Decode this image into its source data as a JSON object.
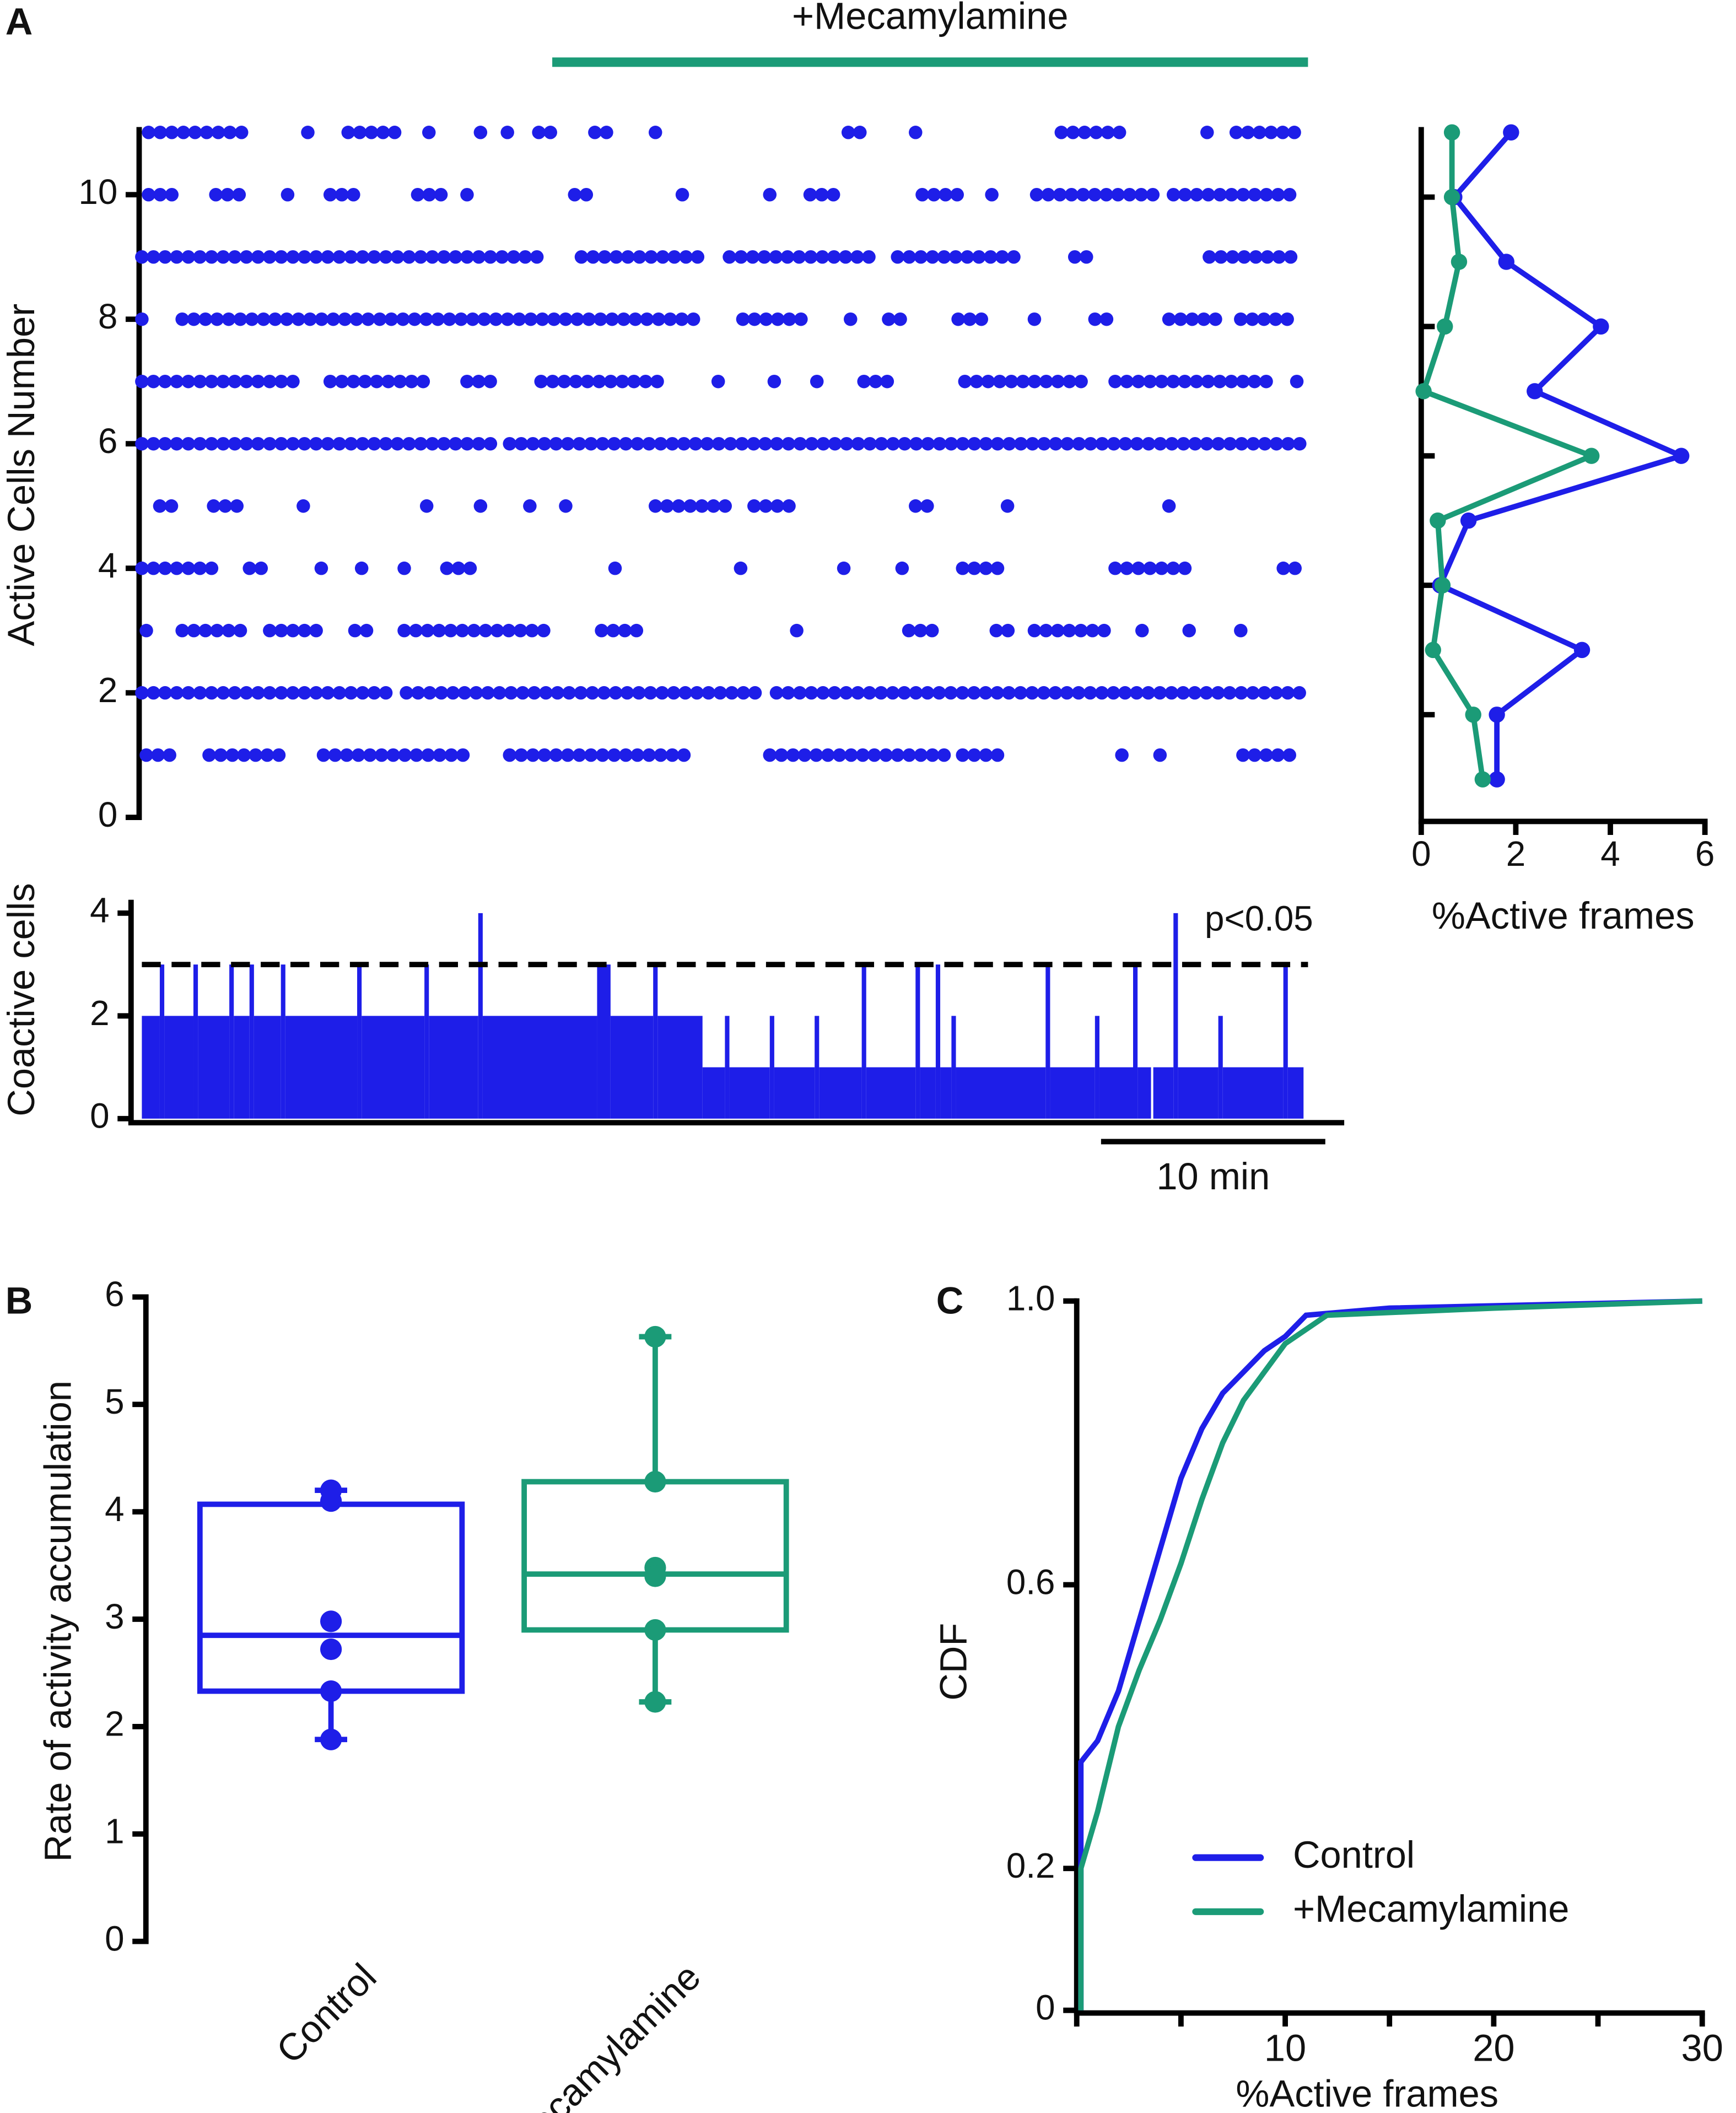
{
  "chart_data": [
    {
      "type": "raster",
      "panel": "A",
      "ylabel": "Active Cells Number",
      "color": "#1e1ee8",
      "treatment_label": "+Mecamylamine",
      "treatment": [
        18.3,
        52
      ],
      "treatment_color": "#1b9b77",
      "xlim": [
        0,
        52
      ],
      "ylim": [
        0,
        11
      ],
      "yticks": [
        0,
        2,
        4,
        6,
        8,
        10
      ],
      "rows": [
        {
          "y": 1,
          "intervals": [
            [
              0.2,
              1.4
            ],
            [
              3,
              6.6
            ],
            [
              8.1,
              14.5
            ],
            [
              16.4,
              24.4
            ],
            [
              28,
              36.1
            ],
            [
              36.6,
              38.6
            ],
            [
              43.7,
              44
            ],
            [
              45.4,
              45.4
            ],
            [
              49.1,
              51.2
            ]
          ]
        },
        {
          "y": 2,
          "intervals": [
            [
              0,
              11.1
            ],
            [
              11.8,
              27.4
            ],
            [
              28.3,
              51.8
            ]
          ]
        },
        {
          "y": 3,
          "intervals": [
            [
              0.2,
              0.2
            ],
            [
              1.8,
              4.5
            ],
            [
              5.7,
              7.8
            ],
            [
              9.5,
              10.1
            ],
            [
              11.7,
              18.3
            ],
            [
              20.5,
              22.5
            ],
            [
              29.2,
              29.2
            ],
            [
              34.2,
              35.5
            ],
            [
              38.1,
              38.9
            ],
            [
              39.8,
              43.4
            ],
            [
              44.6,
              44.6
            ],
            [
              46.7,
              46.7
            ],
            [
              49,
              49
            ]
          ]
        },
        {
          "y": 4,
          "intervals": [
            [
              0,
              3.6
            ],
            [
              4.8,
              5.4
            ],
            [
              8,
              8
            ],
            [
              9.8,
              9.8
            ],
            [
              11.7,
              11.7
            ],
            [
              13.6,
              14.8
            ],
            [
              21.1,
              21.5
            ],
            [
              26.7,
              26.7
            ],
            [
              31.3,
              31.3
            ],
            [
              33.9,
              33.9
            ],
            [
              36.6,
              38.3
            ],
            [
              43.4,
              47
            ],
            [
              50.9,
              51.5
            ]
          ]
        },
        {
          "y": 5,
          "intervals": [
            [
              0.8,
              1.5
            ],
            [
              3.2,
              4.5
            ],
            [
              7.2,
              7.2
            ],
            [
              12.7,
              12.7
            ],
            [
              15.1,
              15.4
            ],
            [
              17.3,
              17.3
            ],
            [
              18.9,
              18.9
            ],
            [
              22.9,
              26.2
            ],
            [
              27.3,
              29.3
            ],
            [
              34.5,
              35.5
            ],
            [
              38.6,
              38.6
            ],
            [
              45.8,
              45.8
            ]
          ]
        },
        {
          "y": 6,
          "intervals": [
            [
              0,
              15.7
            ],
            [
              16.4,
              51.8
            ]
          ]
        },
        {
          "y": 7,
          "intervals": [
            [
              0,
              7.2
            ],
            [
              8.4,
              13
            ],
            [
              14.5,
              16
            ],
            [
              17.8,
              23.2
            ],
            [
              25.7,
              25.7
            ],
            [
              28.2,
              28.2
            ],
            [
              30.1,
              30.1
            ],
            [
              32.2,
              33.4
            ],
            [
              36.7,
              42.2
            ],
            [
              43.4,
              50.3
            ],
            [
              51.5,
              51.5
            ]
          ]
        },
        {
          "y": 8,
          "intervals": [
            [
              0,
              0.4
            ],
            [
              1.8,
              25
            ],
            [
              26.8,
              29.8
            ],
            [
              31.6,
              31.6
            ],
            [
              33.3,
              34
            ],
            [
              36.4,
              37.9
            ],
            [
              39.8,
              39.8
            ],
            [
              42.5,
              43.3
            ],
            [
              45.8,
              47.9
            ],
            [
              49,
              51.5
            ]
          ]
        },
        {
          "y": 9,
          "intervals": [
            [
              0,
              17.8
            ],
            [
              19.6,
              25
            ],
            [
              26.2,
              32.8
            ],
            [
              33.7,
              39.2
            ],
            [
              41.6,
              42.4
            ],
            [
              47.6,
              51.5
            ]
          ]
        },
        {
          "y": 10,
          "intervals": [
            [
              0.3,
              1.4
            ],
            [
              3.3,
              4.6
            ],
            [
              6.5,
              6.5
            ],
            [
              8.4,
              9.5
            ],
            [
              12.3,
              13.4
            ],
            [
              14.5,
              14.8
            ],
            [
              19.3,
              19.9
            ],
            [
              24.1,
              24.5
            ],
            [
              28,
              28
            ],
            [
              29.8,
              30.9
            ],
            [
              34.8,
              36.4
            ],
            [
              37.9,
              37.9
            ],
            [
              39.9,
              45.2
            ],
            [
              46,
              51.4
            ]
          ]
        },
        {
          "y": 11,
          "intervals": [
            [
              0.3,
              4.8
            ],
            [
              7.4,
              7.4
            ],
            [
              9.2,
              11.7
            ],
            [
              12.8,
              12.8
            ],
            [
              15.1,
              15.1
            ],
            [
              16.3,
              16.3
            ],
            [
              17.7,
              18.3
            ],
            [
              20.2,
              21.1
            ],
            [
              22.9,
              23.2
            ],
            [
              31.5,
              32.3
            ],
            [
              34.5,
              34.5
            ],
            [
              41,
              44
            ],
            [
              47.5,
              47.8
            ],
            [
              48.8,
              51.8
            ]
          ]
        }
      ]
    },
    {
      "type": "profile",
      "xlabel": "%Active frames",
      "xlim": [
        0,
        6
      ],
      "xticks": [
        0,
        2,
        4,
        6
      ],
      "ylim": [
        0.35,
        11
      ],
      "yticks": [
        2,
        4,
        6,
        8,
        10
      ],
      "ytick_labels": false,
      "y": [
        1,
        2,
        3,
        4,
        5,
        6,
        7,
        8,
        9,
        10,
        11
      ],
      "series": [
        {
          "color": "#1e1ee8",
          "values": [
            1.6,
            1.6,
            3.4,
            0.4,
            1.0,
            5.5,
            2.4,
            3.8,
            1.8,
            0.7,
            1.9
          ]
        },
        {
          "color": "#1b9b77",
          "values": [
            1.3,
            1.1,
            0.25,
            0.45,
            0.35,
            3.6,
            0.05,
            0.5,
            0.8,
            0.65,
            0.65
          ]
        }
      ]
    },
    {
      "type": "step",
      "ylabel": "Coactive cells",
      "color": "#1e1ee8",
      "xlim": [
        0,
        52
      ],
      "ylim": [
        0,
        4.26
      ],
      "yticks": [
        0,
        2,
        4
      ],
      "threshold": 3,
      "threshold_label": "p<0.05",
      "scalebar": 10,
      "scalebar_label": "10 min",
      "x": [
        0,
        0.8,
        1,
        2.3,
        2.5,
        3.9,
        4.1,
        4.8,
        5,
        6.2,
        6.4,
        9.6,
        9.8,
        12.6,
        12.8,
        15,
        15.2,
        20.3,
        20.9,
        22.8,
        23,
        25,
        26,
        26.2,
        28,
        28.2,
        30,
        30.2,
        32.1,
        32.3,
        34.5,
        34.7,
        35.4,
        35.6,
        36.1,
        36.3,
        40.3,
        40.5,
        42.5,
        42.7,
        44.2,
        44.4,
        45,
        45.1,
        46,
        46.2,
        48,
        48.2,
        50.9,
        51.1,
        51.8
      ],
      "values": [
        2,
        3,
        2,
        3,
        2,
        3,
        2,
        3,
        2,
        3,
        2,
        3,
        2,
        3,
        2,
        4,
        2,
        3,
        2,
        3,
        2,
        1,
        2,
        1,
        2,
        1,
        2,
        1,
        3,
        1,
        3,
        1,
        3,
        1,
        2,
        1,
        3,
        1,
        2,
        1,
        3,
        1,
        0,
        1,
        4,
        1,
        2,
        1,
        3,
        1,
        0
      ]
    },
    {
      "type": "box",
      "panel": "B",
      "ylabel": "Rate of activity accumulation",
      "ylim": [
        0,
        6
      ],
      "yticks": [
        0,
        1,
        2,
        3,
        4,
        5,
        6
      ],
      "categories": [
        "Control",
        "+Mecamylamine"
      ],
      "boxes": [
        {
          "color": "#1e1ee8",
          "min": 1.88,
          "q1": 2.33,
          "median": 2.85,
          "q3": 4.07,
          "max": 4.2,
          "points": [
            4.2,
            4.1,
            2.98,
            2.72,
            2.33,
            1.88
          ]
        },
        {
          "color": "#1b9b77",
          "min": 2.23,
          "q1": 2.9,
          "median": 3.42,
          "q3": 4.28,
          "max": 5.63,
          "points": [
            5.63,
            4.28,
            3.48,
            3.4,
            2.9,
            2.23
          ]
        }
      ]
    },
    {
      "type": "line",
      "panel": "C",
      "xlabel": "%Active frames",
      "ylabel": "CDF",
      "legend": "lower right",
      "xlim": [
        0,
        30
      ],
      "xticks": [
        10,
        20,
        30
      ],
      "xminorticks": [
        0,
        5,
        15,
        25
      ],
      "ylim": [
        0,
        1
      ],
      "yticks": [
        0,
        0.2,
        0.6,
        {
          "value": 1,
          "label": "1.0"
        }
      ],
      "series": [
        {
          "name": "Control",
          "color": "#1e1ee8",
          "x": [
            0.2,
            0.2,
            1,
            2,
            3,
            4,
            5,
            6,
            7,
            8,
            9,
            10,
            11,
            15,
            30
          ],
          "values": [
            0,
            0.35,
            0.38,
            0.45,
            0.55,
            0.65,
            0.75,
            0.82,
            0.87,
            0.9,
            0.93,
            0.95,
            0.98,
            0.99,
            1
          ]
        },
        {
          "name": "+Mecamylamine",
          "color": "#1b9b77",
          "x": [
            0.2,
            0.2,
            1,
            2,
            3,
            4,
            5,
            6,
            7,
            8,
            9,
            10,
            12,
            20,
            30
          ],
          "values": [
            0,
            0.2,
            0.28,
            0.4,
            0.48,
            0.55,
            0.63,
            0.72,
            0.8,
            0.86,
            0.9,
            0.94,
            0.98,
            0.99,
            1
          ]
        }
      ]
    }
  ]
}
